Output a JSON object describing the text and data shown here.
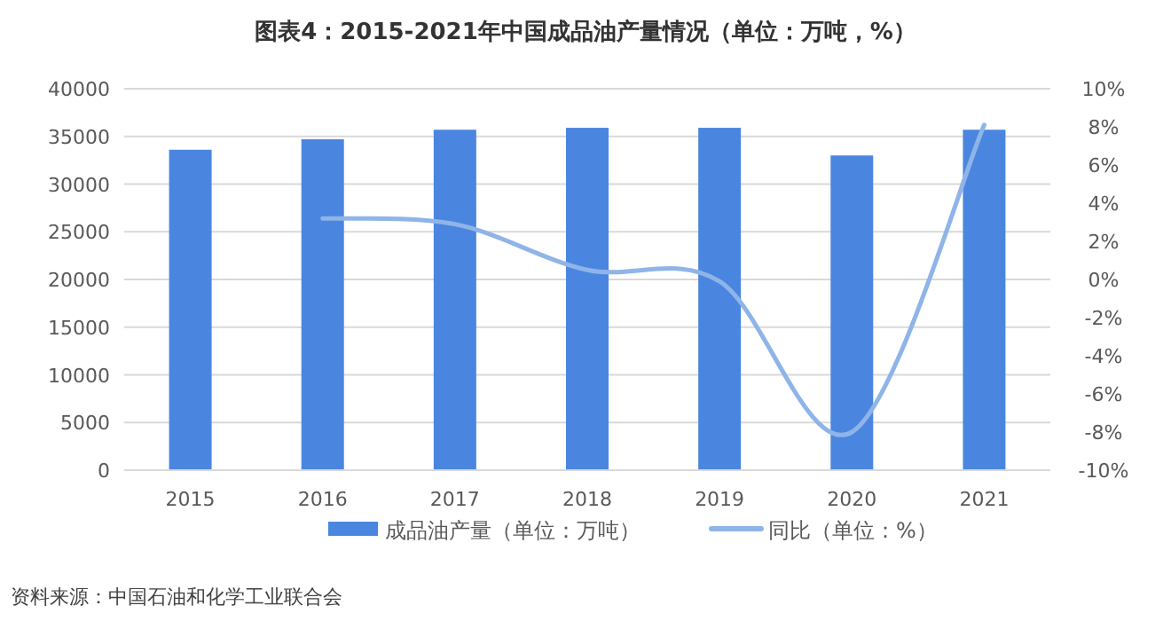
{
  "chart_data": {
    "type": "bar",
    "title": "图表4：2015-2021年中国成品油产量情况（单位：万吨，%）",
    "categories": [
      "2015",
      "2016",
      "2017",
      "2018",
      "2019",
      "2020",
      "2021"
    ],
    "series": [
      {
        "name": "成品油产量（单位：万吨）",
        "color": "#4a86e0",
        "values": [
          33600,
          34700,
          35700,
          35900,
          35900,
          33000,
          35700
        ]
      },
      {
        "name": "同比（单位：%）",
        "type": "line",
        "axis": "y2",
        "color": "#8fb4e8",
        "values": [
          null,
          3.2,
          2.9,
          0.5,
          -0.1,
          -8.0,
          8.1
        ]
      }
    ],
    "ylim": [
      0,
      40000
    ],
    "yticks": [
      0,
      5000,
      10000,
      15000,
      20000,
      25000,
      30000,
      35000,
      40000
    ],
    "y2lim": [
      -10,
      10
    ],
    "y2ticks": [
      {
        "value": -10,
        "label": "-10%"
      },
      {
        "value": -8,
        "label": "-8%"
      },
      {
        "value": -6,
        "label": "-6%"
      },
      {
        "value": -4,
        "label": "-4%"
      },
      {
        "value": -2,
        "label": "-2%"
      },
      {
        "value": 0,
        "label": "0%"
      },
      {
        "value": 2,
        "label": "2%"
      },
      {
        "value": 4,
        "label": "4%"
      },
      {
        "value": 6,
        "label": "6%"
      },
      {
        "value": 8,
        "label": "8%"
      },
      {
        "value": 10,
        "label": "10%"
      }
    ],
    "grid": "y",
    "legend": "bottom",
    "annotations": [
      "资料来源：中国石油和化学工业联合会"
    ]
  }
}
